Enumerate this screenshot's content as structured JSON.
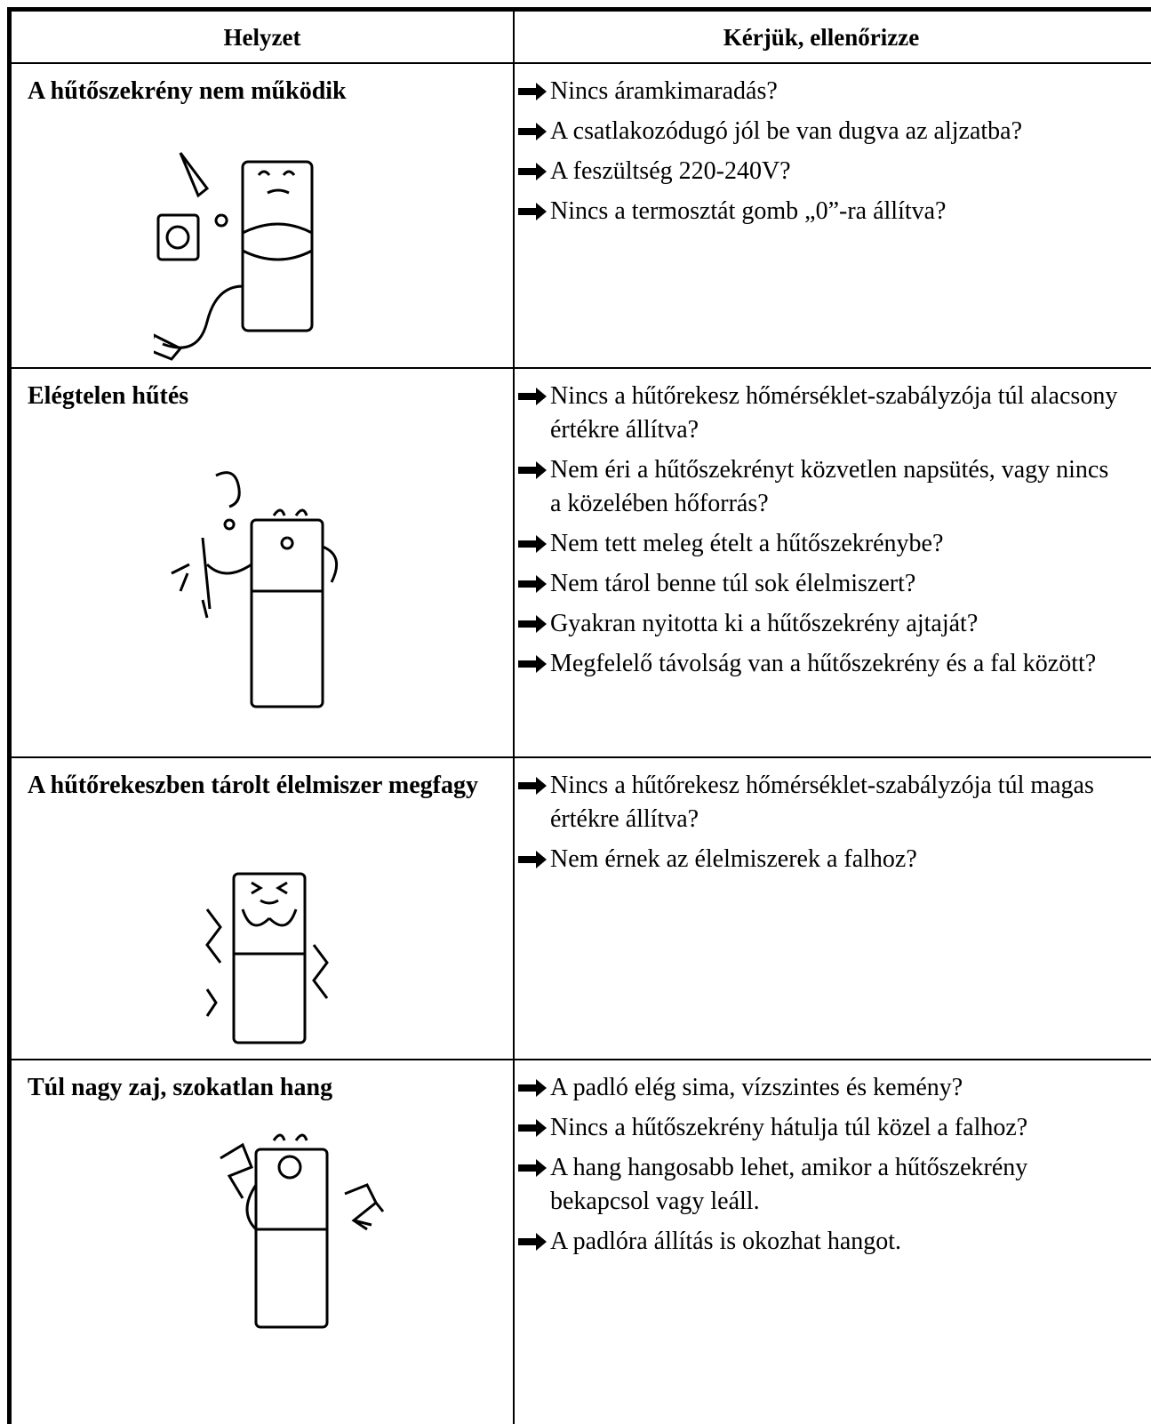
{
  "table": {
    "header": [
      "Helyzet",
      "Kérjük, ellenőrizze"
    ],
    "rows": [
      {
        "situation": "A hűtőszekrény nem működik",
        "checks": [
          "Nincs áramkimaradás?",
          "A csatlakozódugó jól be van dugva az aljzatba?",
          "A feszültség 220-240V?",
          "Nincs a termosztát gomb „0”-ra állítva?"
        ]
      },
      {
        "situation": "Elégtelen hűtés",
        "checks": [
          "Nincs a hűtőrekesz hőmérséklet-szabályzója túl alacsony értékre állítva?",
          "Nem éri a hűtőszekrényt közvetlen napsütés, vagy nincs a közelében hőforrás?",
          "Nem tett meleg ételt a hűtőszekrénybe?",
          "Nem tárol benne túl sok élelmiszert?",
          "Gyakran nyitotta ki a hűtőszekrény ajtaját?",
          "Megfelelő távolság van a hűtőszekrény és a fal között?"
        ]
      },
      {
        "situation": "A hűtőrekeszben tárolt élelmiszer megfagy",
        "checks": [
          "Nincs a hűtőrekesz hőmérséklet-szabályzója túl magas értékre állítva?",
          "Nem érnek az élelmiszerek a falhoz?"
        ]
      },
      {
        "situation": "Túl nagy zaj, szokatlan hang",
        "checks": [
          "A padló elég sima, vízszintes és kemény?",
          "Nincs a hűtőszekrény hátulja túl közel a falhoz?",
          "A hang hangosabb lehet, amikor a hűtőszekrény bekapcsol vagy leáll.",
          "A padlóra állítás is okozhat hangot."
        ]
      }
    ]
  }
}
